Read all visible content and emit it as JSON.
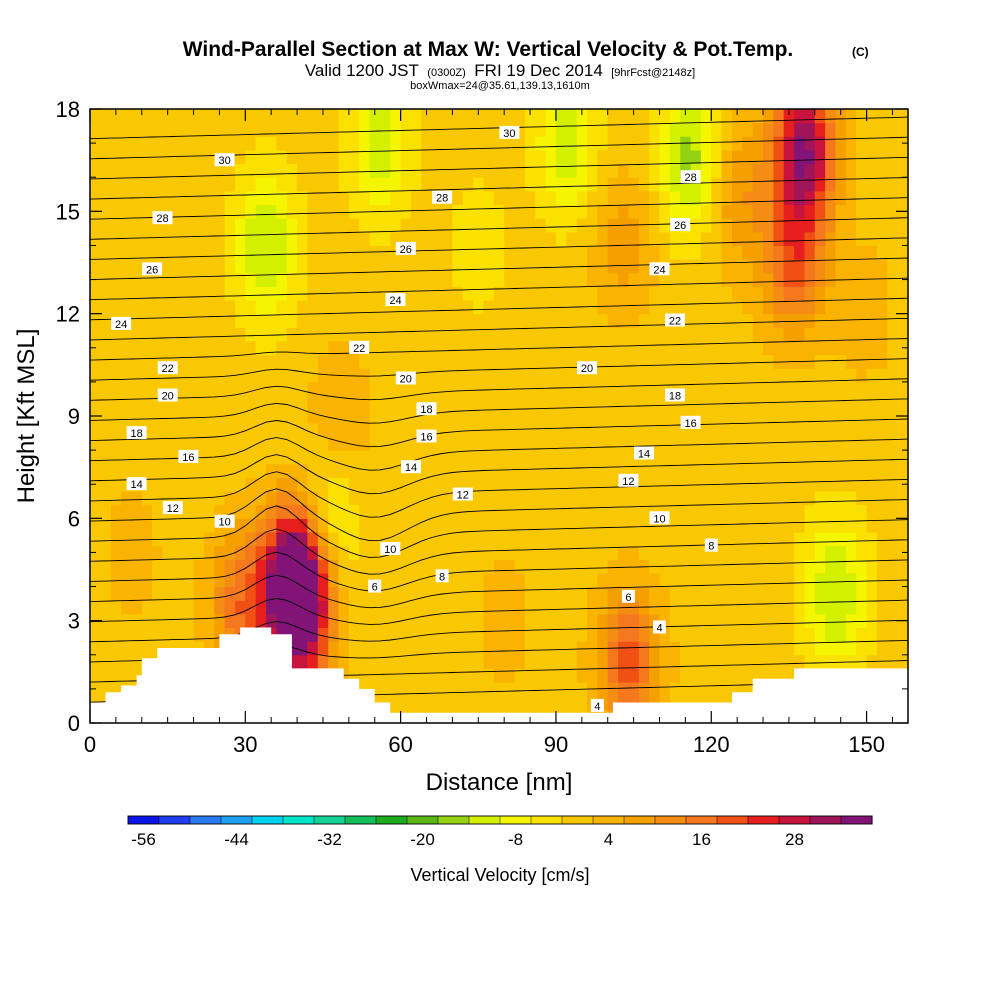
{
  "chart_data": {
    "type": "heatmap",
    "title": "Wind-Parallel Section at Max W: Vertical Velocity & Pot.Temp.",
    "title_suffix": "(C)",
    "subtitle_parts": [
      "Valid 1200 JST",
      "(0300Z)",
      "FRI 19 Dec 2014",
      "[9hrFcst@2148z]"
    ],
    "info_line": "boxWmax=24@35.61,139.13,1610m",
    "xlabel": "Distance [nm]",
    "ylabel": "Height [Kft MSL]",
    "xlim": [
      0,
      158
    ],
    "ylim": [
      0,
      18
    ],
    "xticks": [
      "0",
      "30",
      "60",
      "90",
      "120",
      "150"
    ],
    "yticks": [
      "0",
      "3",
      "6",
      "9",
      "12",
      "15",
      "18"
    ],
    "colorbar": {
      "label": "Vertical Velocity [cm/s]",
      "ticks": [
        "-56",
        "-44",
        "-32",
        "-20",
        "-8",
        "4",
        "16",
        "28"
      ],
      "levels": [
        -58,
        -54,
        -50,
        -46,
        -42,
        -38,
        -34,
        -30,
        -26,
        -22,
        -18,
        -14,
        -10,
        -6,
        -2,
        2,
        6,
        10,
        14,
        18,
        22,
        26,
        30,
        34,
        38
      ],
      "colors": [
        "#0a14e6",
        "#1e3cf0",
        "#2878f0",
        "#1ea0f0",
        "#00d2f0",
        "#00e6c8",
        "#14d296",
        "#14be5a",
        "#1eaa1e",
        "#5ab414",
        "#96d214",
        "#d2f000",
        "#f5f500",
        "#fae100",
        "#fac800",
        "#fab400",
        "#f5a000",
        "#f58c14",
        "#f5781e",
        "#f05014",
        "#e61e1e",
        "#c8143c",
        "#a0145a",
        "#821478"
      ]
    },
    "contour_labels": [
      {
        "x": 26,
        "y": 16.5,
        "v": "30"
      },
      {
        "x": 81,
        "y": 17.3,
        "v": "30"
      },
      {
        "x": 14,
        "y": 14.8,
        "v": "28"
      },
      {
        "x": 68,
        "y": 15.4,
        "v": "28"
      },
      {
        "x": 116,
        "y": 16.0,
        "v": "28"
      },
      {
        "x": 12,
        "y": 13.3,
        "v": "26"
      },
      {
        "x": 61,
        "y": 13.9,
        "v": "26"
      },
      {
        "x": 114,
        "y": 14.6,
        "v": "26"
      },
      {
        "x": 6,
        "y": 11.7,
        "v": "24"
      },
      {
        "x": 59,
        "y": 12.4,
        "v": "24"
      },
      {
        "x": 110,
        "y": 13.3,
        "v": "24"
      },
      {
        "x": 15,
        "y": 10.4,
        "v": "22"
      },
      {
        "x": 52,
        "y": 11.0,
        "v": "22"
      },
      {
        "x": 113,
        "y": 11.8,
        "v": "22"
      },
      {
        "x": 15,
        "y": 9.6,
        "v": "20"
      },
      {
        "x": 61,
        "y": 10.1,
        "v": "20"
      },
      {
        "x": 96,
        "y": 10.4,
        "v": "20"
      },
      {
        "x": 9,
        "y": 8.5,
        "v": "18"
      },
      {
        "x": 65,
        "y": 9.2,
        "v": "18"
      },
      {
        "x": 113,
        "y": 9.6,
        "v": "18"
      },
      {
        "x": 19,
        "y": 7.8,
        "v": "16"
      },
      {
        "x": 65,
        "y": 8.4,
        "v": "16"
      },
      {
        "x": 116,
        "y": 8.8,
        "v": "16"
      },
      {
        "x": 9,
        "y": 7.0,
        "v": "14"
      },
      {
        "x": 62,
        "y": 7.5,
        "v": "14"
      },
      {
        "x": 107,
        "y": 7.9,
        "v": "14"
      },
      {
        "x": 16,
        "y": 6.3,
        "v": "12"
      },
      {
        "x": 72,
        "y": 6.7,
        "v": "12"
      },
      {
        "x": 104,
        "y": 7.1,
        "v": "12"
      },
      {
        "x": 26,
        "y": 5.9,
        "v": "10"
      },
      {
        "x": 58,
        "y": 5.1,
        "v": "10"
      },
      {
        "x": 110,
        "y": 6.0,
        "v": "10"
      },
      {
        "x": 68,
        "y": 4.3,
        "v": "8"
      },
      {
        "x": 120,
        "y": 5.2,
        "v": "8"
      },
      {
        "x": 55,
        "y": 4.0,
        "v": "6"
      },
      {
        "x": 104,
        "y": 3.7,
        "v": "6"
      },
      {
        "x": 110,
        "y": 2.8,
        "v": "4"
      },
      {
        "x": 98,
        "y": 0.5,
        "v": "4"
      }
    ],
    "terrain": [
      [
        0,
        0.6
      ],
      [
        3,
        0.6
      ],
      [
        3,
        0.9
      ],
      [
        6,
        0.9
      ],
      [
        6,
        1.1
      ],
      [
        9,
        1.1
      ],
      [
        9,
        1.4
      ],
      [
        10,
        1.4
      ],
      [
        10,
        1.9
      ],
      [
        13,
        1.9
      ],
      [
        13,
        2.2
      ],
      [
        25,
        2.2
      ],
      [
        25,
        2.6
      ],
      [
        29,
        2.6
      ],
      [
        29,
        2.8
      ],
      [
        35,
        2.8
      ],
      [
        35,
        2.6
      ],
      [
        39,
        2.6
      ],
      [
        39,
        1.6
      ],
      [
        49,
        1.6
      ],
      [
        49,
        1.3
      ],
      [
        52,
        1.3
      ],
      [
        52,
        1.0
      ],
      [
        55,
        1.0
      ],
      [
        55,
        0.6
      ],
      [
        58,
        0.6
      ],
      [
        58,
        0.3
      ],
      [
        101,
        0.3
      ],
      [
        101,
        0.6
      ],
      [
        124,
        0.6
      ],
      [
        124,
        0.9
      ],
      [
        128,
        0.9
      ],
      [
        128,
        1.3
      ],
      [
        136,
        1.3
      ],
      [
        136,
        1.6
      ],
      [
        158,
        1.6
      ]
    ],
    "velocity_cells": [
      {
        "x": 40,
        "y": 4.3,
        "v": 38
      },
      {
        "x": 40,
        "y": 3.2,
        "v": 28
      },
      {
        "x": 29,
        "y": 3.5,
        "v": 16
      },
      {
        "x": 104,
        "y": 1.8,
        "v": 20
      },
      {
        "x": 138,
        "y": 16.8,
        "v": 34
      },
      {
        "x": 136,
        "y": 13.5,
        "v": 18
      },
      {
        "x": 125,
        "y": 15.5,
        "v": 10
      },
      {
        "x": 103,
        "y": 14.0,
        "v": 8
      },
      {
        "x": 48,
        "y": 9.0,
        "v": 6
      },
      {
        "x": 45,
        "y": 5.8,
        "v": -12
      },
      {
        "x": 34,
        "y": 14.0,
        "v": -14
      },
      {
        "x": 116,
        "y": 16.5,
        "v": -16
      },
      {
        "x": 56,
        "y": 17.0,
        "v": -12
      },
      {
        "x": 92,
        "y": 17.0,
        "v": -12
      },
      {
        "x": 144,
        "y": 3.8,
        "v": -14
      },
      {
        "x": 75,
        "y": 14.0,
        "v": -4
      },
      {
        "x": 8,
        "y": 5.0,
        "v": 4
      },
      {
        "x": 80,
        "y": 3.0,
        "v": 4
      },
      {
        "x": 120,
        "y": 9.0,
        "v": 2
      },
      {
        "x": 150,
        "y": 12.0,
        "v": 4
      }
    ],
    "background_velocity": 0
  }
}
